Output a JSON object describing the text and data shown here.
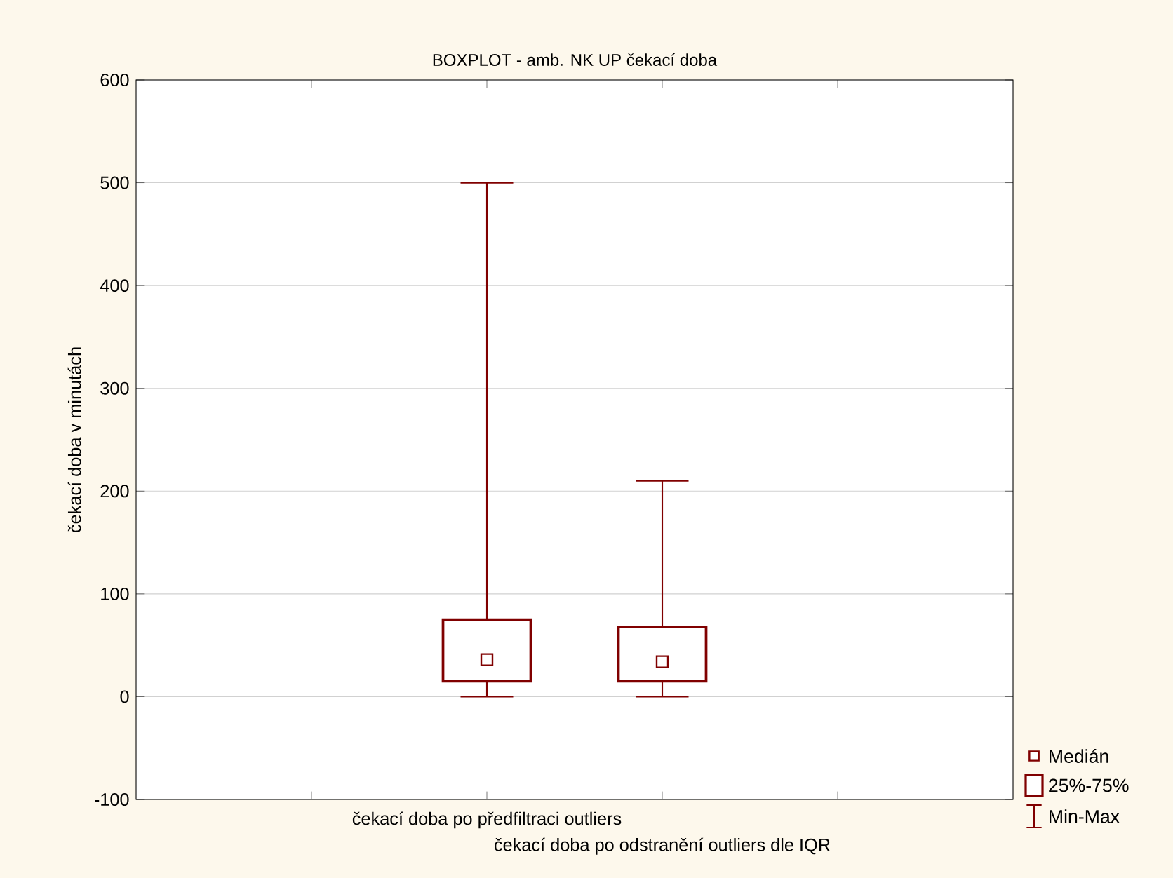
{
  "chart_data": {
    "type": "box",
    "title": "BOXPLOT - amb. NK UP čekací doba",
    "ylabel": "čekací doba v minutách",
    "categories": [
      "čekací doba po předfiltraci outliers",
      "čekací doba po odstranění outliers dle IQR"
    ],
    "boxes": [
      {
        "low": 0,
        "q1": 15,
        "median": 36,
        "q3": 75,
        "high": 500
      },
      {
        "low": 0,
        "q1": 15,
        "median": 34,
        "q3": 68,
        "high": 210
      }
    ],
    "color": "#800000",
    "ylim": [
      -100,
      600
    ],
    "yticks": [
      -100,
      0,
      100,
      200,
      300,
      400,
      500,
      600
    ],
    "grid": "y",
    "marker": "square",
    "annotations": [
      "Medián",
      "25%-75%",
      "Min-Max"
    ]
  }
}
